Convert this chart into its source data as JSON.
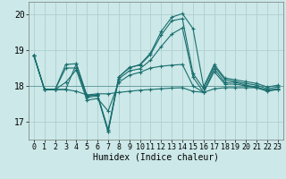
{
  "xlabel": "Humidex (Indice chaleur)",
  "background_color": "#cce8e8",
  "grid_color_major": "#b0d0d0",
  "grid_color_minor": "#d8ecec",
  "line_color": "#1a6e6e",
  "x": [
    0,
    1,
    2,
    3,
    4,
    5,
    6,
    7,
    8,
    9,
    10,
    11,
    12,
    13,
    14,
    15,
    16,
    17,
    18,
    19,
    20,
    21,
    22,
    23
  ],
  "series": [
    [
      18.85,
      17.9,
      17.9,
      17.9,
      17.85,
      17.75,
      17.78,
      17.78,
      17.82,
      17.85,
      17.88,
      17.9,
      17.92,
      17.94,
      17.95,
      17.85,
      17.82,
      17.92,
      17.95,
      17.95,
      17.95,
      17.95,
      17.88,
      17.9
    ],
    [
      18.85,
      17.9,
      17.9,
      18.1,
      18.45,
      17.6,
      17.65,
      17.3,
      18.1,
      18.3,
      18.38,
      18.5,
      18.55,
      18.58,
      18.6,
      18.0,
      17.82,
      18.4,
      18.05,
      18.05,
      18.0,
      17.95,
      17.85,
      17.9
    ],
    [
      18.85,
      17.9,
      17.9,
      18.5,
      18.5,
      17.68,
      17.72,
      16.72,
      18.2,
      18.42,
      18.48,
      18.72,
      19.1,
      19.45,
      19.62,
      18.25,
      17.82,
      18.48,
      18.1,
      18.1,
      18.02,
      17.97,
      17.88,
      17.92
    ],
    [
      18.85,
      17.9,
      17.9,
      18.6,
      18.62,
      17.72,
      17.75,
      16.78,
      18.25,
      18.52,
      18.58,
      18.88,
      19.42,
      19.82,
      19.88,
      18.35,
      17.92,
      18.55,
      18.18,
      18.12,
      18.07,
      18.02,
      17.92,
      17.97
    ],
    [
      18.85,
      17.9,
      17.9,
      17.9,
      18.62,
      17.72,
      17.75,
      16.72,
      18.25,
      18.5,
      18.6,
      18.92,
      19.52,
      19.92,
      20.02,
      19.6,
      17.98,
      18.6,
      18.22,
      18.17,
      18.12,
      18.07,
      17.97,
      18.02
    ]
  ],
  "ylim": [
    16.5,
    20.35
  ],
  "yticks": [
    17,
    18,
    19,
    20
  ],
  "xticks": [
    0,
    1,
    2,
    3,
    4,
    5,
    6,
    7,
    8,
    9,
    10,
    11,
    12,
    13,
    14,
    15,
    16,
    17,
    18,
    19,
    20,
    21,
    22,
    23
  ],
  "marker": "+",
  "markersize": 3,
  "linewidth": 0.8,
  "xlabel_fontsize": 7,
  "tick_fontsize": 6
}
